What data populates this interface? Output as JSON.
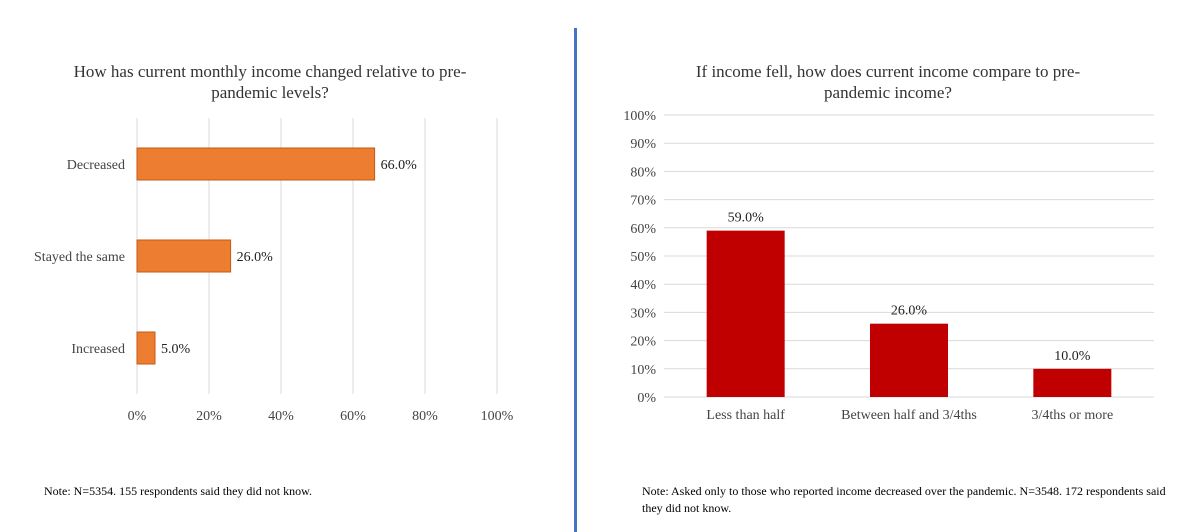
{
  "chart_data": [
    {
      "type": "bar",
      "orientation": "horizontal",
      "title": "How has current monthly income changed relative to pre-pandemic levels?",
      "categories": [
        "Decreased",
        "Stayed the same",
        "Increased"
      ],
      "values": [
        66.0,
        26.0,
        5.0
      ],
      "data_labels": [
        "66.0%",
        "26.0%",
        "5.0%"
      ],
      "xlim": [
        0,
        100
      ],
      "x_ticks": [
        "0%",
        "20%",
        "40%",
        "60%",
        "80%",
        "100%"
      ],
      "grid": "vertical",
      "bar_color": "#ed7d31",
      "note": "Note: N=5354. 155  respondents said they did not know."
    },
    {
      "type": "bar",
      "orientation": "vertical",
      "title": "If income fell, how does current income compare to pre-pandemic income?",
      "categories": [
        "Less than half",
        "Between half and 3/4ths",
        "3/4ths or more"
      ],
      "values": [
        59.0,
        26.0,
        10.0
      ],
      "data_labels": [
        "59.0%",
        "26.0%",
        "10.0%"
      ],
      "ylim": [
        0,
        100
      ],
      "y_ticks": [
        "0%",
        "10%",
        "20%",
        "30%",
        "40%",
        "50%",
        "60%",
        "70%",
        "80%",
        "90%",
        "100%"
      ],
      "grid": "horizontal",
      "bar_color": "#c00000",
      "note": "Note: Asked only to those who reported income decreased over the pandemic. N=3548. 172 respondents said they did not know."
    }
  ]
}
